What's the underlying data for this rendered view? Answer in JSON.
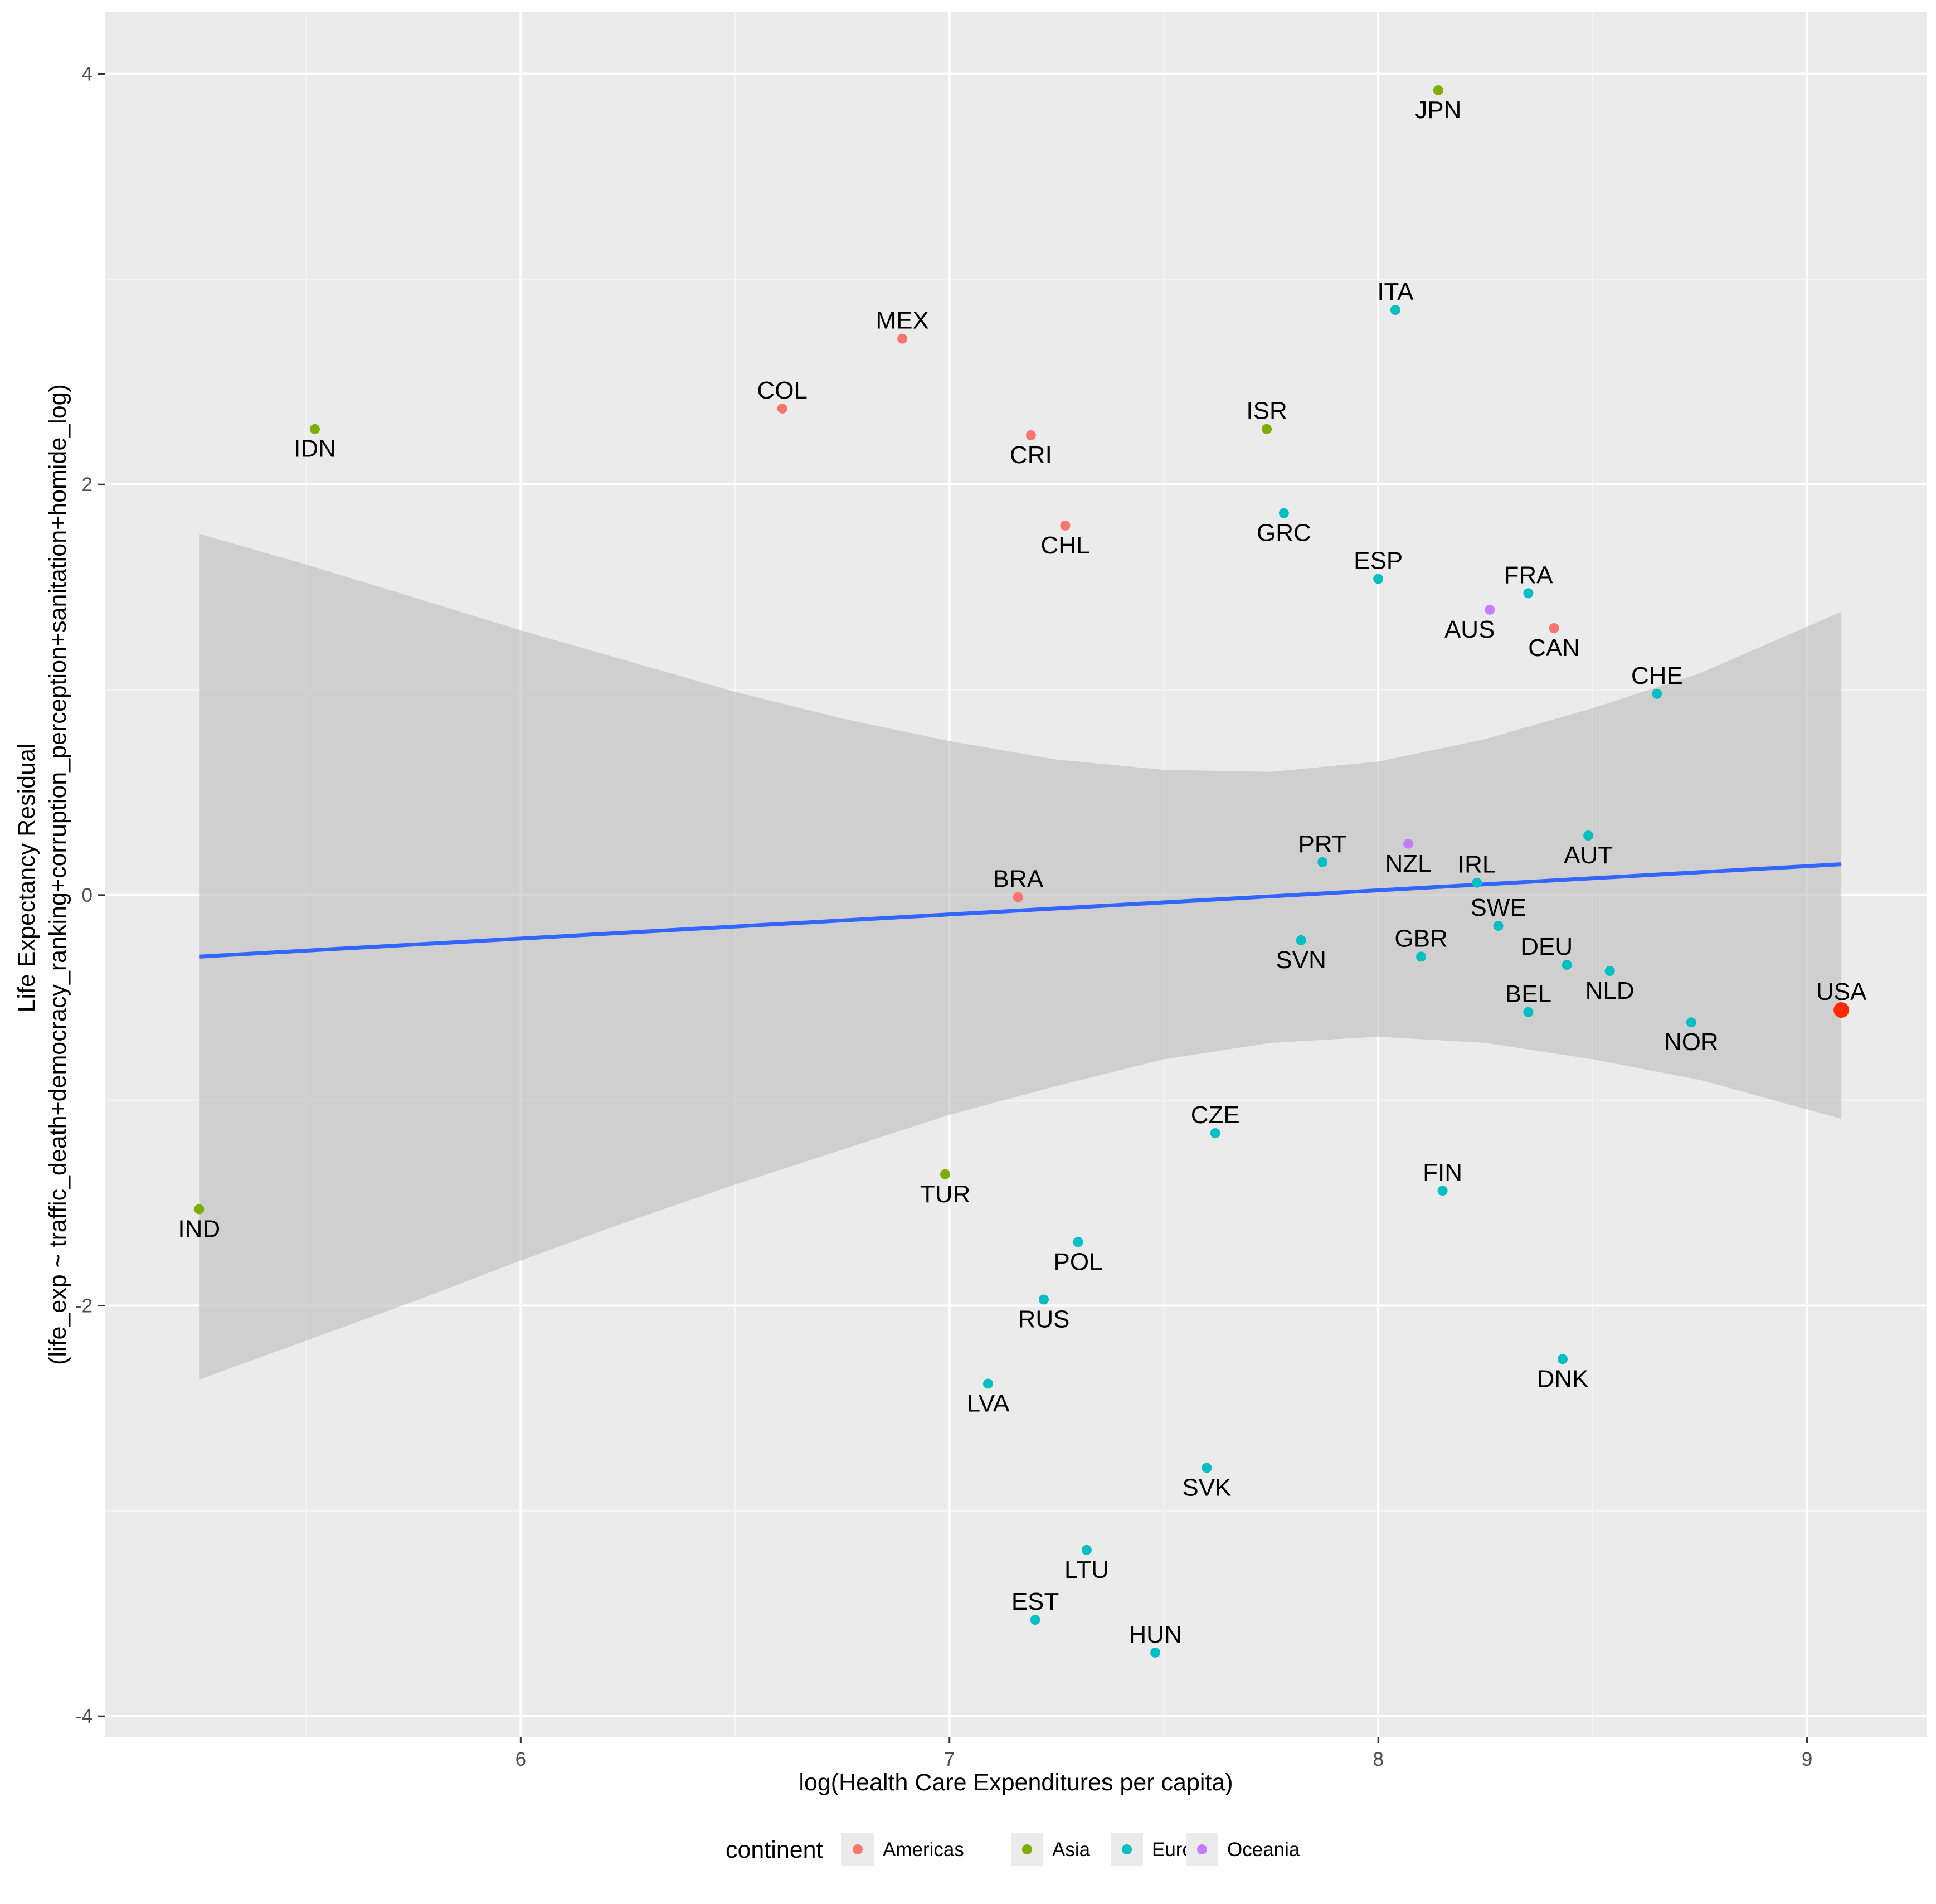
{
  "chart_data": {
    "type": "scatter",
    "title": "",
    "xlabel": "log(Health Care Expenditures per capita)",
    "ylabel_lines": [
      "Life Expectancy Residual",
      "(life_exp ~ traffic_death+democracy_ranking+corruption_perception+sanitation+homide_log)"
    ],
    "xlim": [
      5.03,
      9.28
    ],
    "ylim": [
      -4.1,
      4.3
    ],
    "x_ticks": [
      6,
      7,
      8,
      9
    ],
    "x_tick_labels": [
      "6",
      "7",
      "8",
      "9"
    ],
    "y_ticks": [
      -4,
      -2,
      0,
      2,
      4
    ],
    "y_tick_labels": [
      "-4",
      "-2",
      "0",
      "2",
      "4"
    ],
    "grid": true,
    "legend": {
      "title": "continent",
      "position": "bottom",
      "entries": [
        {
          "name": "Americas",
          "color": "#F8766D"
        },
        {
          "name": "Asia",
          "color": "#7CAE00"
        },
        {
          "name": "Europe",
          "color": "#00BFC4"
        },
        {
          "name": "Oceania",
          "color": "#C77CFF"
        }
      ]
    },
    "colors": {
      "Americas": "#F8766D",
      "Asia": "#7CAE00",
      "Europe": "#00BFC4",
      "Oceania": "#C77CFF",
      "highlight": "#FF2A00",
      "trend": "#3366FF",
      "band": "#BEBEBE",
      "panel": "#EBEBEB"
    },
    "trend_line": {
      "x": [
        5.25,
        9.08
      ],
      "y": [
        -0.3,
        0.15
      ]
    },
    "confidence_band": {
      "x": [
        5.25,
        5.5,
        5.75,
        6.0,
        6.25,
        6.5,
        6.75,
        7.0,
        7.25,
        7.5,
        7.75,
        8.0,
        8.25,
        8.5,
        8.75,
        9.08
      ],
      "upper": [
        1.76,
        1.61,
        1.45,
        1.29,
        1.14,
        0.99,
        0.86,
        0.75,
        0.66,
        0.61,
        0.6,
        0.65,
        0.76,
        0.91,
        1.08,
        1.38
      ],
      "lower": [
        -2.36,
        -2.17,
        -1.98,
        -1.78,
        -1.59,
        -1.41,
        -1.24,
        -1.07,
        -0.93,
        -0.8,
        -0.72,
        -0.69,
        -0.72,
        -0.8,
        -0.9,
        -1.09
      ]
    },
    "points": [
      {
        "label": "JPN",
        "continent": "Asia",
        "x": 8.14,
        "y": 3.92,
        "label_pos": "below"
      },
      {
        "label": "ITA",
        "continent": "Europe",
        "x": 8.04,
        "y": 2.85,
        "label_pos": "above"
      },
      {
        "label": "MEX",
        "continent": "Americas",
        "x": 6.89,
        "y": 2.71,
        "label_pos": "above"
      },
      {
        "label": "COL",
        "continent": "Americas",
        "x": 6.61,
        "y": 2.37,
        "label_pos": "above"
      },
      {
        "label": "IDN",
        "continent": "Asia",
        "x": 5.52,
        "y": 2.27,
        "label_pos": "below"
      },
      {
        "label": "ISR",
        "continent": "Asia",
        "x": 7.74,
        "y": 2.27,
        "label_pos": "above"
      },
      {
        "label": "CRI",
        "continent": "Americas",
        "x": 7.19,
        "y": 2.24,
        "label_pos": "below"
      },
      {
        "label": "GRC",
        "continent": "Europe",
        "x": 7.78,
        "y": 1.86,
        "label_pos": "below"
      },
      {
        "label": "CHL",
        "continent": "Americas",
        "x": 7.27,
        "y": 1.8,
        "label_pos": "below"
      },
      {
        "label": "ESP",
        "continent": "Europe",
        "x": 8.0,
        "y": 1.54,
        "label_pos": "above"
      },
      {
        "label": "FRA",
        "continent": "Europe",
        "x": 8.35,
        "y": 1.47,
        "label_pos": "above"
      },
      {
        "label": "AUS",
        "continent": "Oceania",
        "x": 8.26,
        "y": 1.39,
        "label_pos": "below-left"
      },
      {
        "label": "CAN",
        "continent": "Americas",
        "x": 8.41,
        "y": 1.3,
        "label_pos": "below"
      },
      {
        "label": "CHE",
        "continent": "Europe",
        "x": 8.65,
        "y": 0.98,
        "label_pos": "above"
      },
      {
        "label": "AUT",
        "continent": "Europe",
        "x": 8.49,
        "y": 0.29,
        "label_pos": "below"
      },
      {
        "label": "NZL",
        "continent": "Oceania",
        "x": 8.07,
        "y": 0.25,
        "label_pos": "below"
      },
      {
        "label": "PRT",
        "continent": "Europe",
        "x": 7.87,
        "y": 0.16,
        "label_pos": "above"
      },
      {
        "label": "IRL",
        "continent": "Europe",
        "x": 8.23,
        "y": 0.06,
        "label_pos": "above"
      },
      {
        "label": "BRA",
        "continent": "Americas",
        "x": 7.16,
        "y": -0.01,
        "label_pos": "above"
      },
      {
        "label": "SWE",
        "continent": "Europe",
        "x": 8.28,
        "y": -0.15,
        "label_pos": "above"
      },
      {
        "label": "SVN",
        "continent": "Europe",
        "x": 7.82,
        "y": -0.22,
        "label_pos": "below"
      },
      {
        "label": "GBR",
        "continent": "Europe",
        "x": 8.1,
        "y": -0.3,
        "label_pos": "above"
      },
      {
        "label": "DEU",
        "continent": "Europe",
        "x": 8.44,
        "y": -0.34,
        "label_pos": "above-left"
      },
      {
        "label": "NLD",
        "continent": "Europe",
        "x": 8.54,
        "y": -0.37,
        "label_pos": "below"
      },
      {
        "label": "BEL",
        "continent": "Europe",
        "x": 8.35,
        "y": -0.57,
        "label_pos": "above"
      },
      {
        "label": "USA",
        "continent": "Americas",
        "x": 9.08,
        "y": -0.56,
        "label_pos": "above",
        "highlight": true
      },
      {
        "label": "NOR",
        "continent": "Europe",
        "x": 8.73,
        "y": -0.62,
        "label_pos": "below"
      },
      {
        "label": "CZE",
        "continent": "Europe",
        "x": 7.62,
        "y": -1.16,
        "label_pos": "above"
      },
      {
        "label": "TUR",
        "continent": "Asia",
        "x": 6.99,
        "y": -1.36,
        "label_pos": "below"
      },
      {
        "label": "FIN",
        "continent": "Europe",
        "x": 8.15,
        "y": -1.44,
        "label_pos": "above"
      },
      {
        "label": "IND",
        "continent": "Asia",
        "x": 5.25,
        "y": -1.53,
        "label_pos": "below"
      },
      {
        "label": "POL",
        "continent": "Europe",
        "x": 7.3,
        "y": -1.69,
        "label_pos": "below"
      },
      {
        "label": "RUS",
        "continent": "Europe",
        "x": 7.22,
        "y": -1.97,
        "label_pos": "below"
      },
      {
        "label": "DNK",
        "continent": "Europe",
        "x": 8.43,
        "y": -2.26,
        "label_pos": "below"
      },
      {
        "label": "LVA",
        "continent": "Europe",
        "x": 7.09,
        "y": -2.38,
        "label_pos": "below"
      },
      {
        "label": "SVK",
        "continent": "Europe",
        "x": 7.6,
        "y": -2.79,
        "label_pos": "below"
      },
      {
        "label": "LTU",
        "continent": "Europe",
        "x": 7.32,
        "y": -3.19,
        "label_pos": "below"
      },
      {
        "label": "EST",
        "continent": "Europe",
        "x": 7.2,
        "y": -3.53,
        "label_pos": "above"
      },
      {
        "label": "HUN",
        "continent": "Europe",
        "x": 7.48,
        "y": -3.69,
        "label_pos": "above"
      }
    ]
  }
}
